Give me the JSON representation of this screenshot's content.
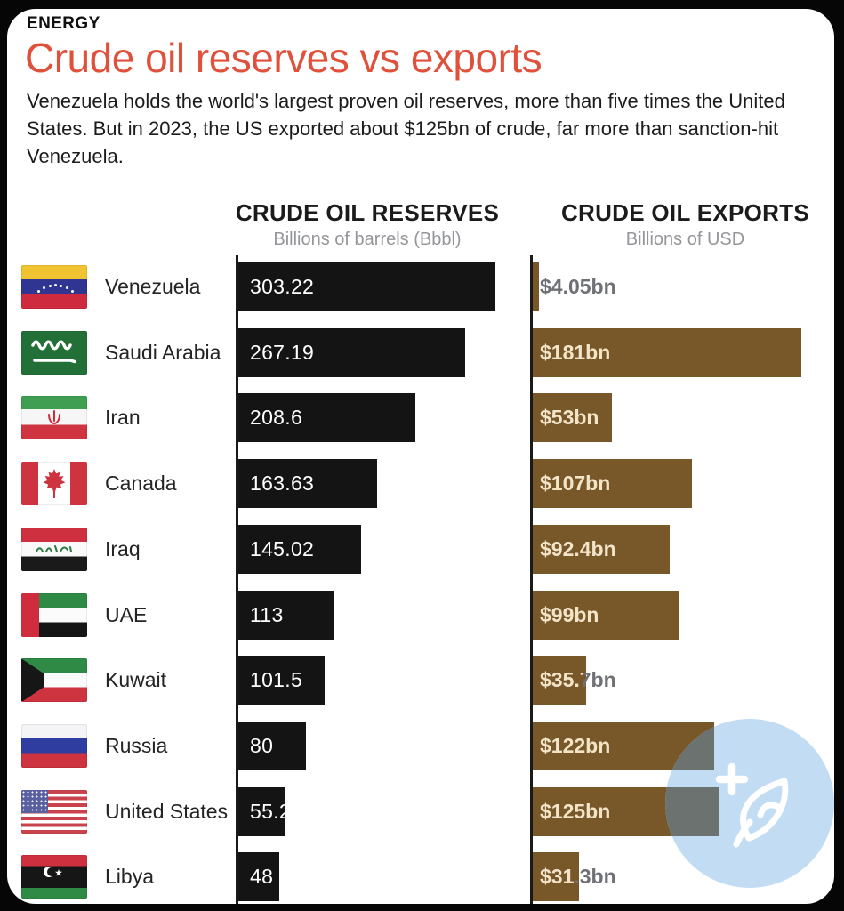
{
  "page": {
    "kicker": "ENERGY",
    "title": "Crude oil reserves vs exports",
    "intro": "Venezuela holds the world's largest proven oil reserves, more than five times the United States. But in 2023, the US exported about $125bn of crude, far more than sanction-hit Venezuela."
  },
  "columns": {
    "reserves": {
      "title": "CRUDE OIL RESERVES",
      "subtitle": "Billions of barrels (Bbbl)"
    },
    "exports": {
      "title": "CRUDE OIL EXPORTS",
      "subtitle": "Billions of USD"
    }
  },
  "chart_data": {
    "type": "bar",
    "orientation": "horizontal",
    "value_origin": 0,
    "groups": [
      {
        "name": "CRUDE OIL RESERVES",
        "unit": "Billions of barrels (Bbbl)",
        "color": "#141414",
        "max_value": 303.22
      },
      {
        "name": "CRUDE OIL EXPORTS",
        "unit": "Billions of USD",
        "color": "#785828",
        "max_value": 181
      }
    ],
    "rows": [
      {
        "country": "Venezuela",
        "reserves_bbbl": 303.22,
        "reserves_label": "303.22",
        "exports_usd_bn": 4.05,
        "exports_label": "$4.05bn"
      },
      {
        "country": "Saudi Arabia",
        "reserves_bbbl": 267.19,
        "reserves_label": "267.19",
        "exports_usd_bn": 181,
        "exports_label": "$181bn"
      },
      {
        "country": "Iran",
        "reserves_bbbl": 208.6,
        "reserves_label": "208.6",
        "exports_usd_bn": 53,
        "exports_label": "$53bn"
      },
      {
        "country": "Canada",
        "reserves_bbbl": 163.63,
        "reserves_label": "163.63",
        "exports_usd_bn": 107,
        "exports_label": "$107bn"
      },
      {
        "country": "Iraq",
        "reserves_bbbl": 145.02,
        "reserves_label": "145.02",
        "exports_usd_bn": 92.4,
        "exports_label": "$92.4bn"
      },
      {
        "country": "UAE",
        "reserves_bbbl": 113,
        "reserves_label": "113",
        "exports_usd_bn": 99,
        "exports_label": "$99bn"
      },
      {
        "country": "Kuwait",
        "reserves_bbbl": 101.5,
        "reserves_label": "101.5",
        "exports_usd_bn": 35.7,
        "exports_label": "$35.7bn"
      },
      {
        "country": "Russia",
        "reserves_bbbl": 80,
        "reserves_label": "80",
        "exports_usd_bn": 122,
        "exports_label": "$122bn"
      },
      {
        "country": "United States",
        "reserves_bbbl": 55.2,
        "reserves_label": "55.2",
        "exports_usd_bn": 125,
        "exports_label": "$125bn"
      },
      {
        "country": "Libya",
        "reserves_bbbl": 48,
        "reserves_label": "48",
        "exports_usd_bn": 31.3,
        "exports_label": "$31.3bn"
      }
    ]
  },
  "colors": {
    "title_accent": "#e0513c",
    "reserves_bar": "#141414",
    "exports_bar": "#785828",
    "exports_value_inside": "#f3e4c6",
    "exports_value_outside": "#6e7075",
    "watermark_circle": "#c2dcf4"
  }
}
